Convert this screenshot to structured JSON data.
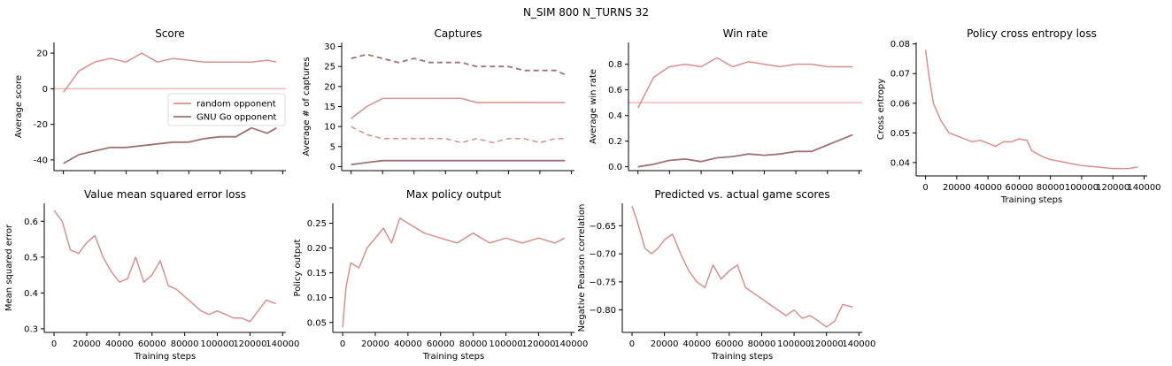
{
  "suptitle": "N_SIM 800   N_TURNS 32",
  "colors": {
    "random": "#d88f8f",
    "gnugo": "#9e7276",
    "refline": "#f0b8b8",
    "axis": "#000000"
  },
  "chart_data": [
    {
      "type": "line",
      "title": "Score",
      "xlabel": "",
      "ylabel": "Average score",
      "xlim": [
        -6000,
        142000
      ],
      "ylim": [
        -46,
        26
      ],
      "xticks": [
        0,
        20000,
        40000,
        60000,
        80000,
        100000,
        120000,
        140000
      ],
      "xticklabels": [],
      "yticks": [
        -40,
        -20,
        0,
        20
      ],
      "hline": 0,
      "legend": {
        "position": "center-right",
        "entries": [
          "random opponent",
          "GNU Go opponent"
        ]
      },
      "series": [
        {
          "name": "random opponent",
          "style": "solid",
          "color": "random",
          "x": [
            0,
            10000,
            20000,
            30000,
            40000,
            50000,
            60000,
            70000,
            80000,
            90000,
            100000,
            110000,
            120000,
            130000,
            136000
          ],
          "y": [
            -2,
            10,
            15,
            17,
            15,
            20,
            15,
            17,
            16,
            15,
            15,
            15,
            15,
            16,
            15
          ]
        },
        {
          "name": "GNU Go opponent",
          "style": "solid",
          "color": "gnugo",
          "x": [
            0,
            10000,
            20000,
            30000,
            40000,
            50000,
            60000,
            70000,
            80000,
            90000,
            100000,
            110000,
            120000,
            130000,
            136000
          ],
          "y": [
            -42,
            -37,
            -35,
            -33,
            -33,
            -32,
            -31,
            -30,
            -30,
            -28,
            -27,
            -27,
            -22,
            -25,
            -22
          ]
        }
      ]
    },
    {
      "type": "line",
      "title": "Captures",
      "xlabel": "",
      "ylabel": "Average # of captures",
      "xlim": [
        -6000,
        142000
      ],
      "ylim": [
        -1,
        31
      ],
      "xticks": [
        0,
        20000,
        40000,
        60000,
        80000,
        100000,
        120000,
        140000
      ],
      "xticklabels": [],
      "yticks": [
        0,
        5,
        10,
        15,
        20,
        25,
        30
      ],
      "series": [
        {
          "style": "dashed",
          "color": "gnugo",
          "x": [
            0,
            10000,
            20000,
            30000,
            40000,
            50000,
            60000,
            70000,
            80000,
            90000,
            100000,
            110000,
            120000,
            130000,
            136000
          ],
          "y": [
            27,
            28,
            27,
            26,
            27,
            26,
            26,
            26,
            25,
            25,
            25,
            24,
            24,
            24,
            23
          ]
        },
        {
          "style": "solid",
          "color": "random",
          "x": [
            0,
            10000,
            20000,
            30000,
            40000,
            50000,
            60000,
            70000,
            80000,
            90000,
            100000,
            110000,
            120000,
            130000,
            136000
          ],
          "y": [
            12,
            15,
            17,
            17,
            17,
            17,
            17,
            17,
            16,
            16,
            16,
            16,
            16,
            16,
            16
          ]
        },
        {
          "style": "dashed",
          "color": "random",
          "x": [
            0,
            10000,
            20000,
            30000,
            40000,
            50000,
            60000,
            70000,
            80000,
            90000,
            100000,
            110000,
            120000,
            130000,
            136000
          ],
          "y": [
            10,
            8,
            7,
            7,
            7,
            7,
            7,
            6,
            7,
            6,
            7,
            7,
            6,
            7,
            7
          ]
        },
        {
          "style": "solid",
          "color": "gnugo",
          "x": [
            0,
            10000,
            20000,
            30000,
            40000,
            50000,
            60000,
            70000,
            80000,
            90000,
            100000,
            110000,
            120000,
            130000,
            136000
          ],
          "y": [
            0.5,
            1,
            1.5,
            1.5,
            1.5,
            1.5,
            1.5,
            1.5,
            1.5,
            1.5,
            1.5,
            1.5,
            1.5,
            1.5,
            1.5
          ]
        }
      ]
    },
    {
      "type": "line",
      "title": "Win rate",
      "xlabel": "",
      "ylabel": "Average win rate",
      "xlim": [
        -6000,
        142000
      ],
      "ylim": [
        -0.03,
        0.97
      ],
      "xticks": [
        0,
        20000,
        40000,
        60000,
        80000,
        100000,
        120000,
        140000
      ],
      "xticklabels": [],
      "yticks": [
        0.0,
        0.2,
        0.4,
        0.6,
        0.8
      ],
      "yticklabels": [
        "0.0",
        "0.2",
        "0.4",
        "0.6",
        "0.8"
      ],
      "hline": 0.5,
      "series": [
        {
          "style": "solid",
          "color": "random",
          "x": [
            0,
            10000,
            20000,
            30000,
            40000,
            50000,
            60000,
            70000,
            80000,
            90000,
            100000,
            110000,
            120000,
            130000,
            136000
          ],
          "y": [
            0.46,
            0.7,
            0.78,
            0.8,
            0.78,
            0.85,
            0.78,
            0.82,
            0.8,
            0.78,
            0.8,
            0.8,
            0.78,
            0.78,
            0.78
          ]
        },
        {
          "style": "solid",
          "color": "gnugo",
          "x": [
            0,
            10000,
            20000,
            30000,
            40000,
            50000,
            60000,
            70000,
            80000,
            90000,
            100000,
            110000,
            120000,
            130000,
            136000
          ],
          "y": [
            0.0,
            0.02,
            0.05,
            0.06,
            0.04,
            0.07,
            0.08,
            0.1,
            0.09,
            0.1,
            0.12,
            0.12,
            0.17,
            0.22,
            0.25
          ]
        }
      ]
    },
    {
      "type": "line",
      "title": "Policy cross entropy loss",
      "xlabel": "Training steps",
      "ylabel": "Cross entropy",
      "xlim": [
        -6000,
        142000
      ],
      "ylim": [
        0.0355,
        0.0805
      ],
      "xticks": [
        0,
        20000,
        40000,
        60000,
        80000,
        100000,
        120000,
        140000
      ],
      "xticklabels": [
        "0",
        "20000",
        "40000",
        "60000",
        "80000",
        "100000",
        "120000",
        "140000"
      ],
      "yticks": [
        0.04,
        0.05,
        0.06,
        0.07,
        0.08
      ],
      "yticklabels": [
        "0.04",
        "0.05",
        "0.06",
        "0.07",
        "0.08"
      ],
      "series": [
        {
          "style": "solid",
          "color": "random",
          "x": [
            0,
            2000,
            5000,
            10000,
            15000,
            20000,
            25000,
            30000,
            35000,
            40000,
            45000,
            50000,
            55000,
            60000,
            65000,
            68000,
            75000,
            80000,
            85000,
            90000,
            95000,
            100000,
            110000,
            120000,
            130000,
            136000
          ],
          "y": [
            0.078,
            0.07,
            0.06,
            0.054,
            0.05,
            0.049,
            0.048,
            0.047,
            0.0475,
            0.0465,
            0.0455,
            0.047,
            0.047,
            0.048,
            0.0475,
            0.044,
            0.042,
            0.041,
            0.0405,
            0.04,
            0.0395,
            0.039,
            0.0385,
            0.038,
            0.038,
            0.0385
          ]
        }
      ]
    },
    {
      "type": "line",
      "title": "Value mean squared error loss",
      "xlabel": "Training steps",
      "ylabel": "Mean squared error",
      "xlim": [
        -6000,
        142000
      ],
      "ylim": [
        0.29,
        0.65
      ],
      "xticks": [
        0,
        20000,
        40000,
        60000,
        80000,
        100000,
        120000,
        140000
      ],
      "xticklabels": [
        "0",
        "20000",
        "40000",
        "60000",
        "80000",
        "100000",
        "120000",
        "140000"
      ],
      "yticks": [
        0.3,
        0.4,
        0.5,
        0.6
      ],
      "yticklabels": [
        "0.3",
        "0.4",
        "0.5",
        "0.6"
      ],
      "series": [
        {
          "style": "solid",
          "color": "random",
          "x": [
            0,
            5000,
            10000,
            15000,
            20000,
            25000,
            30000,
            35000,
            40000,
            45000,
            50000,
            55000,
            60000,
            65000,
            70000,
            75000,
            80000,
            85000,
            90000,
            95000,
            100000,
            105000,
            110000,
            115000,
            120000,
            125000,
            130000,
            136000
          ],
          "y": [
            0.63,
            0.6,
            0.52,
            0.51,
            0.54,
            0.56,
            0.5,
            0.46,
            0.43,
            0.44,
            0.5,
            0.43,
            0.45,
            0.49,
            0.42,
            0.41,
            0.39,
            0.37,
            0.35,
            0.34,
            0.35,
            0.34,
            0.33,
            0.33,
            0.32,
            0.35,
            0.38,
            0.37
          ]
        }
      ]
    },
    {
      "type": "line",
      "title": "Max policy output",
      "xlabel": "Training steps",
      "ylabel": "Policy output",
      "xlim": [
        -6000,
        142000
      ],
      "ylim": [
        0.03,
        0.29
      ],
      "xticks": [
        0,
        20000,
        40000,
        60000,
        80000,
        100000,
        120000,
        140000
      ],
      "xticklabels": [
        "0",
        "20000",
        "40000",
        "60000",
        "80000",
        "100000",
        "120000",
        "140000"
      ],
      "yticks": [
        0.05,
        0.1,
        0.15,
        0.2,
        0.25
      ],
      "yticklabels": [
        "0.05",
        "0.10",
        "0.15",
        "0.20",
        "0.25"
      ],
      "series": [
        {
          "style": "solid",
          "color": "random",
          "x": [
            0,
            2000,
            5000,
            10000,
            15000,
            20000,
            25000,
            30000,
            35000,
            40000,
            50000,
            60000,
            70000,
            80000,
            90000,
            100000,
            110000,
            120000,
            130000,
            136000
          ],
          "y": [
            0.04,
            0.12,
            0.17,
            0.16,
            0.2,
            0.22,
            0.24,
            0.21,
            0.26,
            0.25,
            0.23,
            0.22,
            0.21,
            0.23,
            0.21,
            0.22,
            0.21,
            0.22,
            0.21,
            0.22
          ]
        }
      ]
    },
    {
      "type": "line",
      "title": "Predicted vs. actual game scores",
      "xlabel": "Training steps",
      "ylabel": "Negative Pearson correlation",
      "xlim": [
        -6000,
        142000
      ],
      "ylim": [
        -0.84,
        -0.61
      ],
      "xticks": [
        0,
        20000,
        40000,
        60000,
        80000,
        100000,
        120000,
        140000
      ],
      "xticklabels": [
        "0",
        "20000",
        "40000",
        "60000",
        "80000",
        "100000",
        "120000",
        "140000"
      ],
      "yticks": [
        -0.8,
        -0.75,
        -0.7,
        -0.65
      ],
      "yticklabels": [
        "−0.80",
        "−0.75",
        "−0.70",
        "−0.65"
      ],
      "series": [
        {
          "style": "solid",
          "color": "random",
          "x": [
            0,
            3000,
            8000,
            12000,
            16000,
            20000,
            25000,
            30000,
            35000,
            40000,
            45000,
            50000,
            55000,
            60000,
            65000,
            70000,
            75000,
            80000,
            85000,
            90000,
            95000,
            100000,
            105000,
            110000,
            115000,
            120000,
            125000,
            130000,
            136000
          ],
          "y": [
            -0.615,
            -0.64,
            -0.69,
            -0.7,
            -0.69,
            -0.675,
            -0.665,
            -0.7,
            -0.73,
            -0.75,
            -0.76,
            -0.72,
            -0.745,
            -0.73,
            -0.72,
            -0.76,
            -0.77,
            -0.78,
            -0.79,
            -0.8,
            -0.81,
            -0.8,
            -0.815,
            -0.81,
            -0.82,
            -0.83,
            -0.82,
            -0.79,
            -0.795
          ]
        }
      ]
    }
  ]
}
